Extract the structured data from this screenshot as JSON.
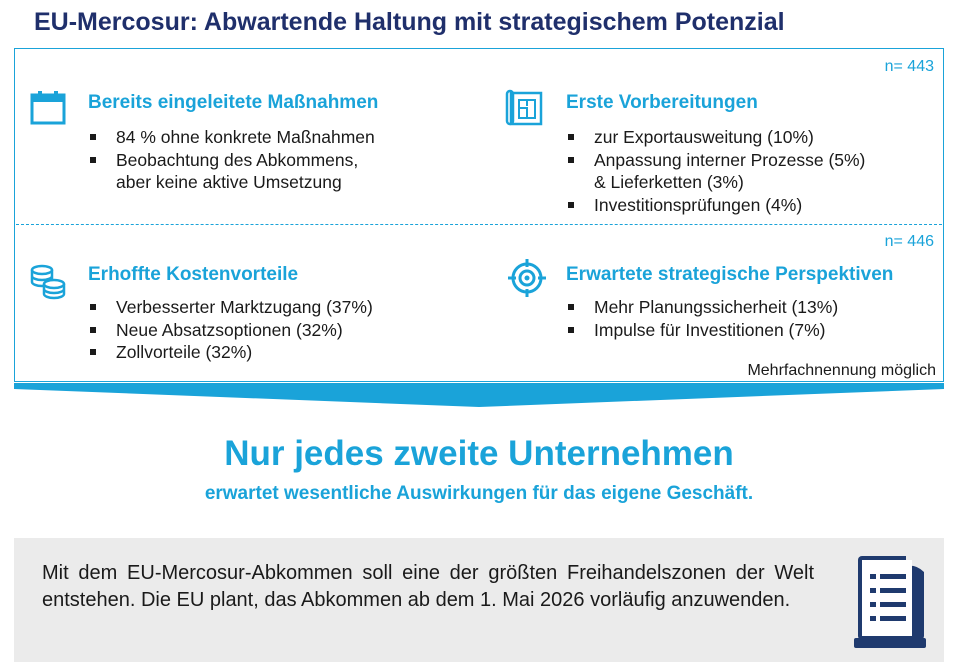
{
  "title": "EU-Mercosur: Abwartende Haltung mit strategischem Potenzial",
  "top_block": {
    "n": "n= 443",
    "left": {
      "icon": "calendar-icon",
      "title": "Bereits eingeleitete Maßnahmen",
      "items": [
        "84 % ohne konkrete Maßnahmen",
        "Beobachtung des Abkommens,",
        "aber keine aktive Umsetzung"
      ]
    },
    "right": {
      "icon": "blueprint-icon",
      "title": "Erste Vorbereitungen",
      "items": [
        "zur Exportausweitung (10%)",
        "Anpassung interner Prozesse (5%)",
        "& Lieferketten (3%)",
        "Investitionsprüfungen (4%)"
      ]
    }
  },
  "bottom_block": {
    "n": "n= 446",
    "left": {
      "icon": "coins-icon",
      "title": "Erhoffte Kostenvorteile",
      "items": [
        "Verbesserter Marktzugang (37%)",
        "Neue Absatzsoptionen (32%)",
        "Zollvorteile (32%)"
      ]
    },
    "right": {
      "icon": "target-icon",
      "title": "Erwartete strategische Perspektiven",
      "items": [
        "Mehr Planungssicherheit (13%)",
        "Impulse für Investitionen (7%)"
      ]
    }
  },
  "note": "Mehrfachnennung möglich",
  "headline": "Nur jedes zweite Unternehmen",
  "subheadline": "erwartet wesentliche Auswirkungen für das eigene Geschäft.",
  "info": {
    "text": "Mit dem EU-Mercosur-Abkommen soll eine der größten Freihandelszonen der Welt entstehen. Die EU plant, das Abkommen ab dem 1. Mai 2026 vorläufig anzuwenden.",
    "icon": "document-icon"
  },
  "colors": {
    "accent": "#1aa3d9",
    "title": "#1f2f6b",
    "icon_dark": "#1f3a6e",
    "info_bg": "#ebebeb"
  }
}
